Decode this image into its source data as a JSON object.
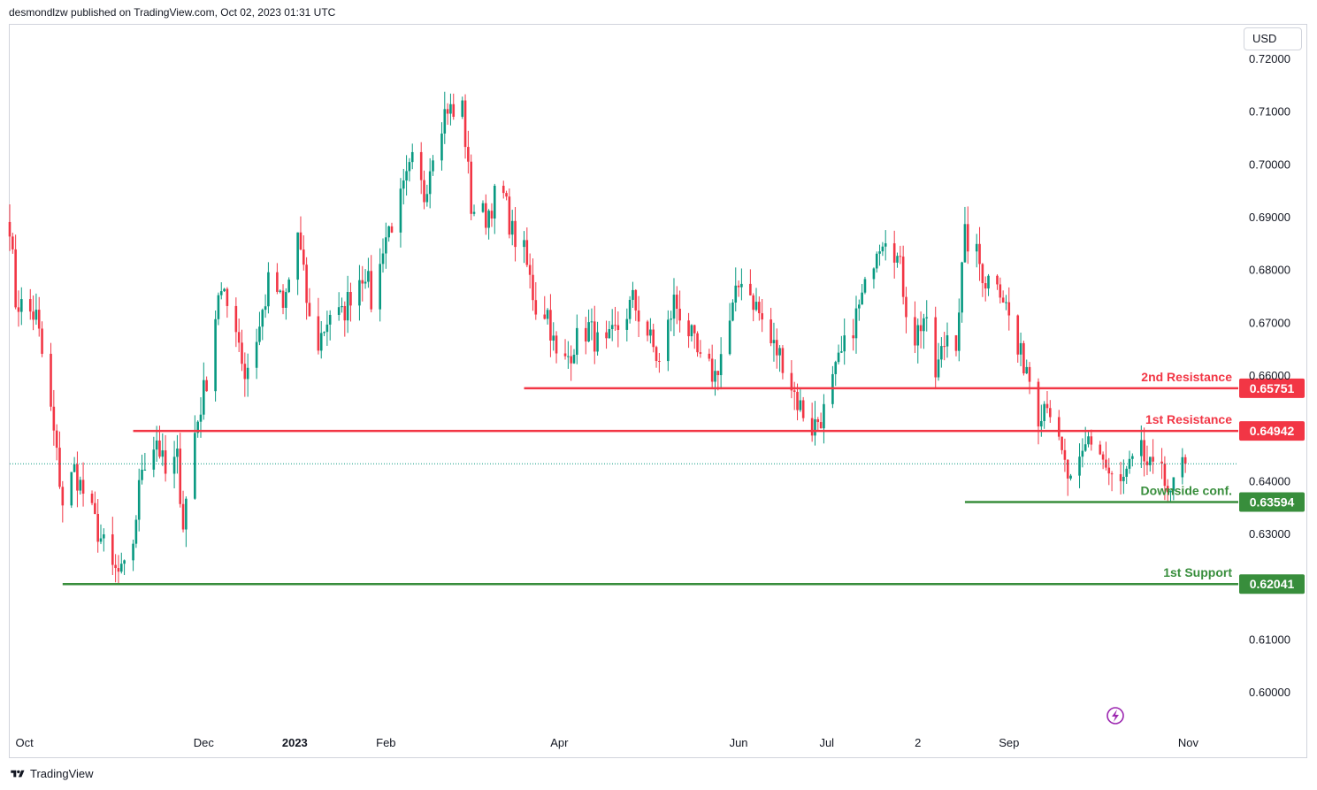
{
  "header": {
    "attribution": "desmondlzw published on TradingView.com, Oct 02, 2023 01:31 UTC"
  },
  "currency_button": "USD",
  "footer": {
    "brand": "TradingView"
  },
  "colors": {
    "up": "#089981",
    "down": "#f23645",
    "resistance": "#f23645",
    "support": "#388e3c"
  },
  "chart_data": {
    "type": "candlestick",
    "y_axis": {
      "min": 0.59,
      "max": 0.722,
      "ticks": [
        "0.72000",
        "0.71000",
        "0.70000",
        "0.69000",
        "0.68000",
        "0.67000",
        "0.66000",
        "0.64000",
        "0.63000",
        "0.61000",
        "0.60000"
      ],
      "tick_values": [
        0.72,
        0.71,
        0.7,
        0.69,
        0.68,
        0.67,
        0.66,
        0.64,
        0.63,
        0.61,
        0.6
      ]
    },
    "x_axis": {
      "labels": [
        {
          "text": "Oct",
          "date": "2022-10-01",
          "bold": false
        },
        {
          "text": "Dec",
          "date": "2022-12-01",
          "bold": false
        },
        {
          "text": "2023",
          "date": "2023-01-01",
          "bold": true
        },
        {
          "text": "Feb",
          "date": "2023-02-01",
          "bold": false
        },
        {
          "text": "Apr",
          "date": "2023-04-01",
          "bold": false
        },
        {
          "text": "Jun",
          "date": "2023-06-01",
          "bold": false
        },
        {
          "text": "Jul",
          "date": "2023-07-01",
          "bold": false
        },
        {
          "text": "2",
          "date": "2023-08-01",
          "bold": false
        },
        {
          "text": "Sep",
          "date": "2023-09-01",
          "bold": false
        },
        {
          "text": "Nov",
          "date": "2023-11-01",
          "bold": false
        }
      ]
    },
    "levels": [
      {
        "name": "2nd Resistance",
        "price": 0.65751,
        "price_text": "0.65751",
        "kind": "resistance",
        "from": "2023-03-20"
      },
      {
        "name": "1st Resistance",
        "price": 0.64942,
        "price_text": "0.64942",
        "kind": "resistance",
        "from": "2022-11-07"
      },
      {
        "name": "Downside conf.",
        "price": 0.63594,
        "price_text": "0.63594",
        "kind": "support",
        "from": "2023-08-17"
      },
      {
        "name": "1st Support",
        "price": 0.62041,
        "price_text": "0.62041",
        "kind": "support",
        "from": "2022-10-14"
      }
    ],
    "last_price": 0.6432,
    "range": {
      "start": "2022-09-26",
      "end": "2023-11-15"
    },
    "price_path": [
      [
        "2022-09-26",
        0.689
      ],
      [
        "2022-09-28",
        0.674
      ],
      [
        "2022-10-05",
        0.671
      ],
      [
        "2022-10-10",
        0.653
      ],
      [
        "2022-10-14",
        0.636
      ],
      [
        "2022-10-18",
        0.642
      ],
      [
        "2022-10-25",
        0.632
      ],
      [
        "2022-10-31",
        0.623
      ],
      [
        "2022-11-03",
        0.622
      ],
      [
        "2022-11-06",
        0.624
      ],
      [
        "2022-11-10",
        0.643
      ],
      [
        "2022-11-15",
        0.648
      ],
      [
        "2022-11-18",
        0.641
      ],
      [
        "2022-11-22",
        0.644
      ],
      [
        "2022-11-24",
        0.632
      ],
      [
        "2022-11-28",
        0.649
      ],
      [
        "2022-12-03",
        0.662
      ],
      [
        "2022-12-06",
        0.676
      ],
      [
        "2022-12-12",
        0.67
      ],
      [
        "2022-12-15",
        0.66
      ],
      [
        "2022-12-20",
        0.669
      ],
      [
        "2022-12-24",
        0.68
      ],
      [
        "2022-12-28",
        0.672
      ],
      [
        "2023-01-02",
        0.687
      ],
      [
        "2023-01-06",
        0.67
      ],
      [
        "2023-01-09",
        0.666
      ],
      [
        "2023-01-13",
        0.672
      ],
      [
        "2023-01-17",
        0.671
      ],
      [
        "2023-01-21",
        0.677
      ],
      [
        "2023-01-25",
        0.68
      ],
      [
        "2023-01-28",
        0.671
      ],
      [
        "2023-01-31",
        0.685
      ],
      [
        "2023-02-06",
        0.693
      ],
      [
        "2023-02-10",
        0.7
      ],
      [
        "2023-02-14",
        0.694
      ],
      [
        "2023-02-18",
        0.706
      ],
      [
        "2023-02-22",
        0.711
      ],
      [
        "2023-02-25",
        0.708
      ],
      [
        "2023-02-27",
        0.711
      ],
      [
        "2023-03-02",
        0.692
      ],
      [
        "2023-03-07",
        0.69
      ],
      [
        "2023-03-12",
        0.696
      ],
      [
        "2023-03-16",
        0.687
      ],
      [
        "2023-03-20",
        0.683
      ],
      [
        "2023-03-24",
        0.673
      ],
      [
        "2023-03-28",
        0.672
      ],
      [
        "2023-04-01",
        0.66
      ],
      [
        "2023-04-06",
        0.666
      ],
      [
        "2023-04-11",
        0.669
      ],
      [
        "2023-04-16",
        0.664
      ],
      [
        "2023-04-21",
        0.669
      ],
      [
        "2023-04-26",
        0.674
      ],
      [
        "2023-05-01",
        0.668
      ],
      [
        "2023-05-05",
        0.662
      ],
      [
        "2023-05-10",
        0.674
      ],
      [
        "2023-05-14",
        0.67
      ],
      [
        "2023-05-19",
        0.662
      ],
      [
        "2023-05-24",
        0.66
      ],
      [
        "2023-05-29",
        0.67
      ],
      [
        "2023-06-02",
        0.679
      ],
      [
        "2023-06-07",
        0.673
      ],
      [
        "2023-06-12",
        0.666
      ],
      [
        "2023-06-16",
        0.663
      ],
      [
        "2023-06-21",
        0.655
      ],
      [
        "2023-06-26",
        0.65
      ],
      [
        "2023-06-30",
        0.653
      ],
      [
        "2023-07-05",
        0.662
      ],
      [
        "2023-07-09",
        0.668
      ],
      [
        "2023-07-14",
        0.676
      ],
      [
        "2023-07-18",
        0.685
      ],
      [
        "2023-07-22",
        0.688
      ],
      [
        "2023-07-26",
        0.68
      ],
      [
        "2023-07-30",
        0.666
      ],
      [
        "2023-08-03",
        0.671
      ],
      [
        "2023-08-07",
        0.66
      ],
      [
        "2023-08-11",
        0.668
      ],
      [
        "2023-08-14",
        0.667
      ],
      [
        "2023-08-17",
        0.686
      ],
      [
        "2023-08-20",
        0.684
      ],
      [
        "2023-08-24",
        0.678
      ],
      [
        "2023-08-28",
        0.679
      ],
      [
        "2023-09-01",
        0.671
      ],
      [
        "2023-09-04",
        0.664
      ],
      [
        "2023-09-07",
        0.662
      ],
      [
        "2023-09-11",
        0.653
      ],
      [
        "2023-09-14",
        0.656
      ],
      [
        "2023-09-18",
        0.646
      ],
      [
        "2023-09-22",
        0.639
      ],
      [
        "2023-09-25",
        0.642
      ],
      [
        "2023-09-28",
        0.648
      ],
      [
        "2023-10-01",
        0.647
      ],
      [
        "2023-10-05",
        0.641
      ],
      [
        "2023-10-08",
        0.638
      ],
      [
        "2023-10-12",
        0.642
      ],
      [
        "2023-10-16",
        0.645
      ],
      [
        "2023-10-20",
        0.641
      ],
      [
        "2023-10-23",
        0.644
      ],
      [
        "2023-10-26",
        0.636
      ],
      [
        "2023-10-28",
        0.643
      ],
      [
        "2023-10-31",
        0.6432
      ]
    ]
  }
}
